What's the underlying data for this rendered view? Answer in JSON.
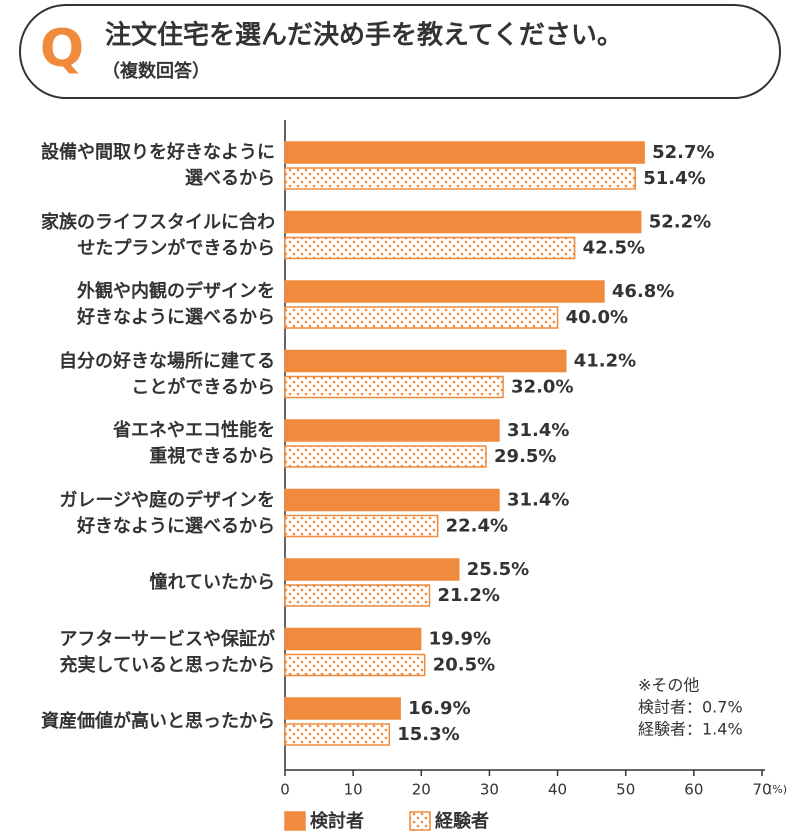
{
  "header": {
    "badge": "Q",
    "title": "注文住宅を選んだ決め手を教えてください。",
    "subtitle": "（複数回答）"
  },
  "chart_data": {
    "type": "hbar",
    "categories": [
      "設備や間取りを好きなように\n選べるから",
      "家族のライフスタイルに合わ\nせたプランができるから",
      "外観や内観のデザインを\n好きなように選べるから",
      "自分の好きな場所に建てる\nことができるから",
      "省エネやエコ性能を\n重視できるから",
      "ガレージや庭のデザインを\n好きなように選べるから",
      "憧れていたから",
      "アフターサービスや保証が\n充実していると思ったから",
      "資産価値が高いと思ったから"
    ],
    "series": [
      {
        "name": "検討者",
        "color": "#f08a3c",
        "style": "solid",
        "values": [
          52.7,
          52.2,
          46.8,
          41.2,
          31.4,
          31.4,
          25.5,
          19.9,
          16.9
        ],
        "value_labels": [
          "52.7%",
          "52.2%",
          "46.8%",
          "41.2%",
          "31.4%",
          "31.4%",
          "25.5%",
          "19.9%",
          "16.9%"
        ]
      },
      {
        "name": "経験者",
        "color": "#f08a3c",
        "style": "dotted",
        "values": [
          51.4,
          42.5,
          40.0,
          32.0,
          29.5,
          22.4,
          21.2,
          20.5,
          15.3
        ],
        "value_labels": [
          "51.4%",
          "42.5%",
          "40.0%",
          "32.0%",
          "29.5%",
          "22.4%",
          "21.2%",
          "20.5%",
          "15.3%"
        ]
      }
    ],
    "xlim": [
      0,
      70
    ],
    "xticks": [
      0,
      10,
      20,
      30,
      40,
      50,
      60,
      70
    ],
    "x_label": "(%)",
    "annotation": [
      "※その他",
      "検討者：0.7%",
      "経験者：1.4%"
    ]
  }
}
